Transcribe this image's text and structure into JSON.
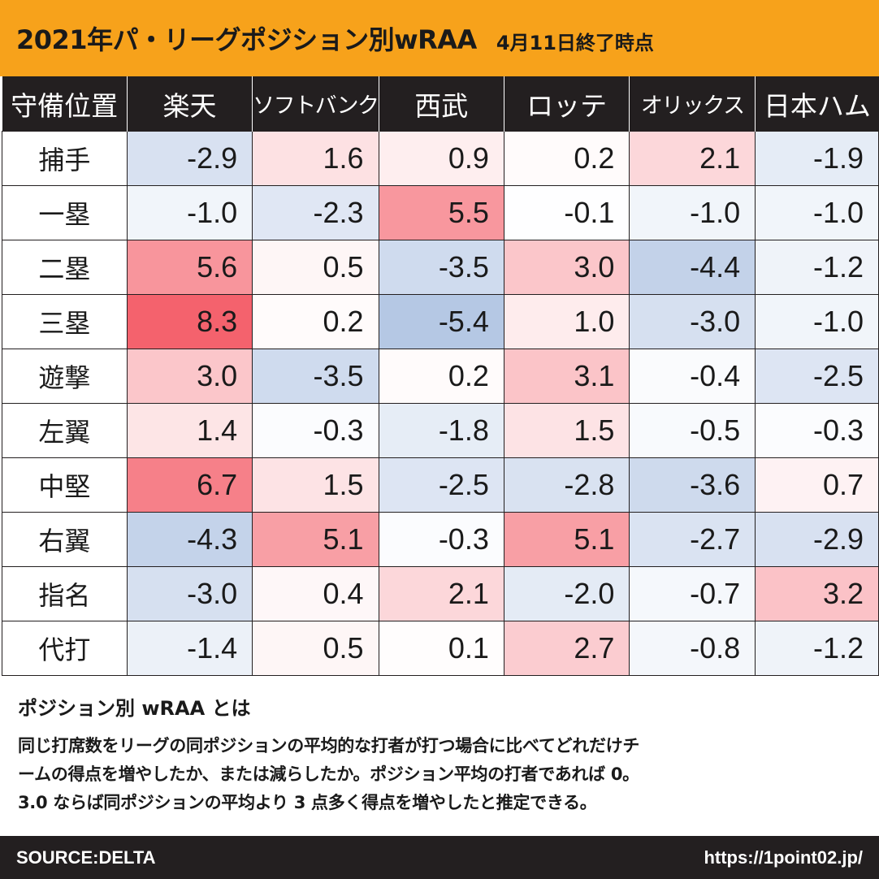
{
  "header": {
    "title": "2021年パ・リーグポジション別wRAA",
    "subtitle": "4月11日終了時点"
  },
  "chart_data": {
    "type": "heatmap",
    "corner_label": "守備位置",
    "columns": [
      "楽天",
      "ソフトバンク",
      "西武",
      "ロッテ",
      "オリックス",
      "日本ハム"
    ],
    "rows": [
      "捕手",
      "一塁",
      "二塁",
      "三塁",
      "遊撃",
      "左翼",
      "中堅",
      "右翼",
      "指名",
      "代打"
    ],
    "values": [
      [
        -2.9,
        1.6,
        0.9,
        0.2,
        2.1,
        -1.9
      ],
      [
        -1.0,
        -2.3,
        5.5,
        -0.1,
        -1.0,
        -1.0
      ],
      [
        5.6,
        0.5,
        -3.5,
        3.0,
        -4.4,
        -1.2
      ],
      [
        8.3,
        0.2,
        -5.4,
        1.0,
        -3.0,
        -1.0
      ],
      [
        3.0,
        -3.5,
        0.2,
        3.1,
        -0.4,
        -2.5
      ],
      [
        1.4,
        -0.3,
        -1.8,
        1.5,
        -0.5,
        -0.3
      ],
      [
        6.7,
        1.5,
        -2.5,
        -2.8,
        -3.6,
        0.7
      ],
      [
        -4.3,
        5.1,
        -0.3,
        5.1,
        -2.7,
        -2.9
      ],
      [
        -3.0,
        0.4,
        2.1,
        -2.0,
        -0.7,
        3.2
      ],
      [
        -1.4,
        0.5,
        0.1,
        2.7,
        -0.8,
        -1.2
      ]
    ],
    "color_scale": {
      "negative": "#8eaad6",
      "neutral": "#ffffff",
      "positive": "#f4626d",
      "max_abs": 8.3
    }
  },
  "explanation": {
    "title": "ポジション別 wRAA とは",
    "lines": [
      "同じ打席数をリーグの同ポジションの平均的な打者が打つ場合に比べてどれだけチ",
      "ームの得点を増やしたか、または減らしたか。ポジション平均の打者であれば 0。",
      "3.0 ならば同ポジションの平均より 3 点多く得点を増やしたと推定できる。"
    ]
  },
  "footer": {
    "source": "SOURCE:DELTA",
    "url": "https://1point02.jp/"
  },
  "colors": {
    "title_bar": "#f7a21b",
    "header_bg": "#231f20"
  }
}
